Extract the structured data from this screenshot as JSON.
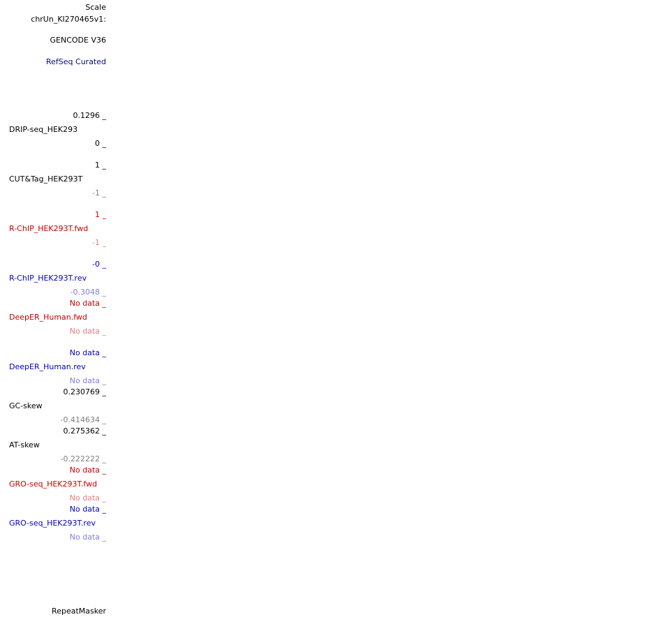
{
  "header": {
    "scale": "Scale",
    "chrom": "chrUn_KI270465v1:"
  },
  "tracks": {
    "gencode": "GENCODE V36",
    "refseq": "RefSeq Curated",
    "drip": {
      "name": "DRIP-seq_HEK293",
      "max": "0.1296 _",
      "min": "0 _"
    },
    "cuttag": {
      "name": "CUT&Tag_HEK293T",
      "max": "1 _",
      "min": "-1 _"
    },
    "rchip_fwd": {
      "name": "R-ChIP_HEK293T.fwd",
      "max": "1 _",
      "min": "-1 _"
    },
    "rchip_rev": {
      "name": "R-ChIP_HEK293T.rev",
      "max": "-0 _",
      "min": "-0.3048 _"
    },
    "deeper_fwd": {
      "name": "DeepER_Human.fwd",
      "max": "No data _",
      "min": "No data _"
    },
    "deeper_rev": {
      "name": "DeepER_Human.rev",
      "max": "No data _",
      "min": "No data _"
    },
    "gc_skew": {
      "name": "GC-skew",
      "max": "0.230769 _",
      "min": "-0.414634 _"
    },
    "at_skew": {
      "name": "AT-skew",
      "max": "0.275362 _",
      "min": "-0.222222 _"
    },
    "gro_fwd": {
      "name": "GRO-seq_HEK293T.fwd",
      "max": "No data _",
      "min": "No data _"
    },
    "gro_rev": {
      "name": "GRO-seq_HEK293T.rev",
      "max": "No data _",
      "min": "No data _"
    },
    "repeatmasker": "RepeatMasker"
  }
}
